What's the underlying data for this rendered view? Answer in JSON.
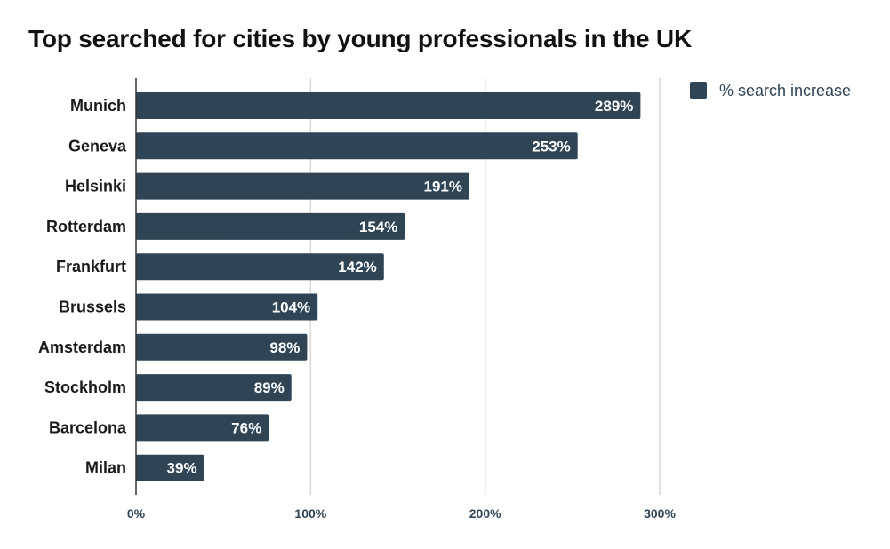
{
  "chart_data": {
    "type": "bar",
    "orientation": "horizontal",
    "title": "Top searched for cities by young professionals in the UK",
    "categories": [
      "Munich",
      "Geneva",
      "Helsinki",
      "Rotterdam",
      "Frankfurt",
      "Brussels",
      "Amsterdam",
      "Stockholm",
      "Barcelona",
      "Milan"
    ],
    "series": [
      {
        "name": "% search increase",
        "values": [
          289,
          253,
          191,
          154,
          142,
          104,
          98,
          89,
          76,
          39
        ],
        "data_labels": [
          "289%",
          "253%",
          "191%",
          "154%",
          "142%",
          "104%",
          "98%",
          "89%",
          "76%",
          "39%"
        ],
        "color": "#2f4556"
      }
    ],
    "xlim": [
      0,
      300
    ],
    "xticks": [
      0,
      100,
      200,
      300
    ],
    "xtick_labels": [
      "0%",
      "100%",
      "200%",
      "300%"
    ],
    "xlabel": "",
    "ylabel": "",
    "grid": true,
    "legend_position": "top-right"
  },
  "colors": {
    "bar": "#2f4556",
    "grid": "#d9d9d9",
    "axis": "#333333",
    "tick_text": "#2f4556"
  }
}
